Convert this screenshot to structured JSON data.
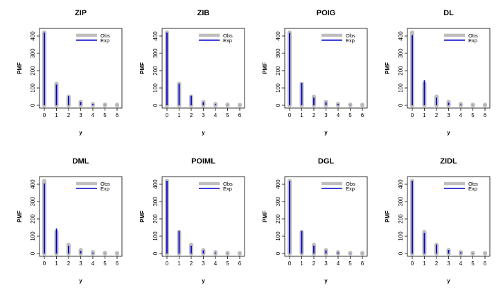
{
  "chart_data": [
    {
      "type": "bar",
      "title": "ZIP",
      "xlabel": "y",
      "ylabel": "PMF",
      "x": [
        0,
        1,
        2,
        3,
        4,
        5,
        6
      ],
      "xlim": [
        0,
        6
      ],
      "ylim": [
        0,
        420
      ],
      "yticks": [
        0,
        100,
        200,
        300,
        400
      ],
      "legend": "top-right",
      "series": [
        {
          "name": "Obs",
          "color": "#bebebe",
          "values": [
            420,
            125,
            50,
            20,
            8,
            4,
            3
          ]
        },
        {
          "name": "Exp",
          "color": "#0000cc",
          "values": [
            420,
            120,
            52,
            20,
            7,
            3,
            1
          ]
        }
      ]
    },
    {
      "type": "bar",
      "title": "ZIB",
      "xlabel": "y",
      "ylabel": "PMF",
      "x": [
        0,
        1,
        2,
        3,
        4,
        5,
        6
      ],
      "xlim": [
        0,
        6
      ],
      "ylim": [
        0,
        420
      ],
      "yticks": [
        0,
        100,
        200,
        300,
        400
      ],
      "legend": "top-right",
      "series": [
        {
          "name": "Obs",
          "color": "#bebebe",
          "values": [
            420,
            125,
            50,
            20,
            8,
            4,
            3
          ]
        },
        {
          "name": "Exp",
          "color": "#0000cc",
          "values": [
            420,
            125,
            55,
            18,
            6,
            2,
            1
          ]
        }
      ]
    },
    {
      "type": "bar",
      "title": "POIG",
      "xlabel": "y",
      "ylabel": "PMF",
      "x": [
        0,
        1,
        2,
        3,
        4,
        5,
        6
      ],
      "xlim": [
        0,
        6
      ],
      "ylim": [
        0,
        420
      ],
      "yticks": [
        0,
        100,
        200,
        300,
        400
      ],
      "legend": "top-right",
      "series": [
        {
          "name": "Obs",
          "color": "#bebebe",
          "values": [
            420,
            125,
            50,
            20,
            8,
            4,
            3
          ]
        },
        {
          "name": "Exp",
          "color": "#0000cc",
          "values": [
            418,
            128,
            45,
            18,
            7,
            3,
            1
          ]
        }
      ]
    },
    {
      "type": "bar",
      "title": "DL",
      "xlabel": "y",
      "ylabel": "PMF",
      "x": [
        0,
        1,
        2,
        3,
        4,
        5,
        6
      ],
      "xlim": [
        0,
        6
      ],
      "ylim": [
        0,
        420
      ],
      "yticks": [
        0,
        100,
        200,
        300,
        400
      ],
      "legend": "top-right",
      "series": [
        {
          "name": "Obs",
          "color": "#bebebe",
          "values": [
            420,
            125,
            50,
            20,
            8,
            4,
            3
          ]
        },
        {
          "name": "Exp",
          "color": "#0000cc",
          "values": [
            405,
            145,
            45,
            15,
            5,
            2,
            1
          ]
        }
      ]
    },
    {
      "type": "bar",
      "title": "DML",
      "xlabel": "y",
      "ylabel": "PMF",
      "x": [
        0,
        1,
        2,
        3,
        4,
        5,
        6
      ],
      "xlim": [
        0,
        6
      ],
      "ylim": [
        0,
        420
      ],
      "yticks": [
        0,
        100,
        200,
        300,
        400
      ],
      "legend": "top-right",
      "series": [
        {
          "name": "Obs",
          "color": "#bebebe",
          "values": [
            420,
            125,
            50,
            20,
            8,
            4,
            3
          ]
        },
        {
          "name": "Exp",
          "color": "#0000cc",
          "values": [
            405,
            145,
            45,
            15,
            5,
            2,
            1
          ]
        }
      ]
    },
    {
      "type": "bar",
      "title": "POIML",
      "xlabel": "y",
      "ylabel": "PMF",
      "x": [
        0,
        1,
        2,
        3,
        4,
        5,
        6
      ],
      "xlim": [
        0,
        6
      ],
      "ylim": [
        0,
        420
      ],
      "yticks": [
        0,
        100,
        200,
        300,
        400
      ],
      "legend": "top-right",
      "series": [
        {
          "name": "Obs",
          "color": "#bebebe",
          "values": [
            420,
            125,
            50,
            20,
            8,
            4,
            3
          ]
        },
        {
          "name": "Exp",
          "color": "#0000cc",
          "values": [
            420,
            130,
            45,
            18,
            6,
            2,
            1
          ]
        }
      ]
    },
    {
      "type": "bar",
      "title": "DGL",
      "xlabel": "y",
      "ylabel": "PMF",
      "x": [
        0,
        1,
        2,
        3,
        4,
        5,
        6
      ],
      "xlim": [
        0,
        6
      ],
      "ylim": [
        0,
        420
      ],
      "yticks": [
        0,
        100,
        200,
        300,
        400
      ],
      "legend": "top-right",
      "series": [
        {
          "name": "Obs",
          "color": "#bebebe",
          "values": [
            420,
            125,
            50,
            20,
            8,
            4,
            3
          ]
        },
        {
          "name": "Exp",
          "color": "#0000cc",
          "values": [
            420,
            130,
            45,
            18,
            6,
            2,
            1
          ]
        }
      ]
    },
    {
      "type": "bar",
      "title": "ZIDL",
      "xlabel": "y",
      "ylabel": "PMF",
      "x": [
        0,
        1,
        2,
        3,
        4,
        5,
        6
      ],
      "xlim": [
        0,
        6
      ],
      "ylim": [
        0,
        420
      ],
      "yticks": [
        0,
        100,
        200,
        300,
        400
      ],
      "legend": "top-right",
      "series": [
        {
          "name": "Obs",
          "color": "#bebebe",
          "values": [
            420,
            125,
            50,
            20,
            8,
            4,
            3
          ]
        },
        {
          "name": "Exp",
          "color": "#0000cc",
          "values": [
            420,
            120,
            50,
            20,
            7,
            3,
            1
          ]
        }
      ]
    }
  ]
}
